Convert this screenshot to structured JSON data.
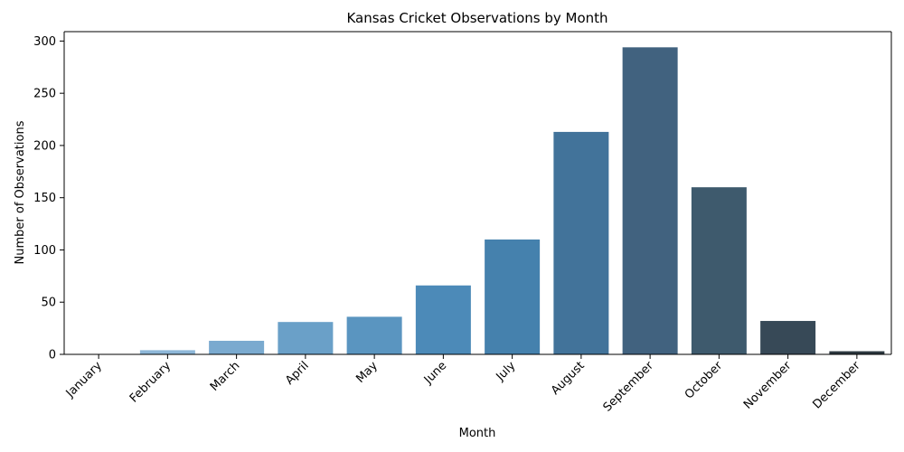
{
  "chart_data": {
    "type": "bar",
    "title": "Kansas Cricket Observations by Month",
    "xlabel": "Month",
    "ylabel": "Number of Observations",
    "categories": [
      "January",
      "February",
      "March",
      "April",
      "May",
      "June",
      "July",
      "August",
      "September",
      "October",
      "November",
      "December"
    ],
    "values": [
      0,
      4,
      13,
      31,
      36,
      66,
      110,
      213,
      294,
      160,
      32,
      3
    ],
    "ylim": [
      0,
      309
    ],
    "yticks": [
      0,
      50,
      100,
      150,
      200,
      250,
      300
    ],
    "grid": false,
    "colors": [
      "#a3c4de",
      "#8db7d8",
      "#7aaacf",
      "#6aa0c8",
      "#5a95c0",
      "#4c8ab8",
      "#4581ad",
      "#42739a",
      "#41627f",
      "#3e5a6d",
      "#374957",
      "#2d3840"
    ]
  }
}
